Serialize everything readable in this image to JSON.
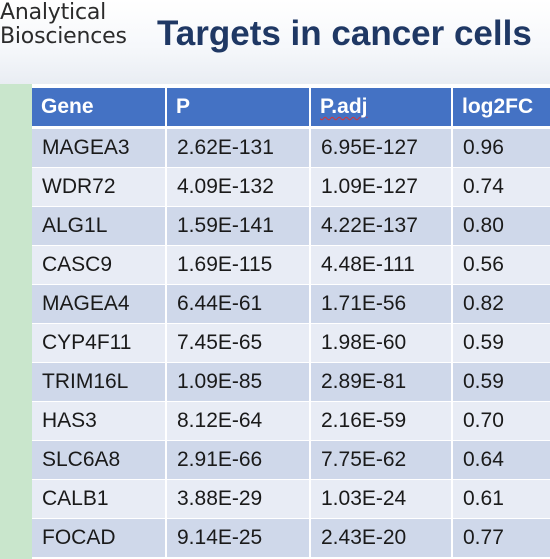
{
  "logo": {
    "line1": "Analytical",
    "line2": "Biosciences"
  },
  "title": "Targets in cancer cells",
  "table": {
    "headers": [
      "Gene",
      "P",
      "P.adj",
      "log2FC"
    ],
    "rows": [
      [
        "MAGEA3",
        "2.62E-131",
        "6.95E-127",
        "0.96"
      ],
      [
        "WDR72",
        "4.09E-132",
        "1.09E-127",
        "0.74"
      ],
      [
        "ALG1L",
        "1.59E-141",
        "4.22E-137",
        "0.80"
      ],
      [
        "CASC9",
        "1.69E-115",
        "4.48E-111",
        "0.56"
      ],
      [
        "MAGEA4",
        "6.44E-61",
        "1.71E-56",
        "0.82"
      ],
      [
        "CYP4F11",
        "7.45E-65",
        "1.98E-60",
        "0.59"
      ],
      [
        "TRIM16L",
        "1.09E-85",
        "2.89E-81",
        "0.59"
      ],
      [
        "HAS3",
        "8.12E-64",
        "2.16E-59",
        "0.70"
      ],
      [
        "SLC6A8",
        "2.91E-66",
        "7.75E-62",
        "0.64"
      ],
      [
        "CALB1",
        "3.88E-29",
        "1.03E-24",
        "0.61"
      ],
      [
        "FOCAD",
        "9.14E-25",
        "2.43E-20",
        "0.77"
      ]
    ]
  },
  "colors": {
    "title": "#1f3864",
    "header_bg": "#4472c4",
    "row_odd": "#cfd8ea",
    "row_even": "#e8ecf5",
    "sidebar": "#c9e6cc"
  }
}
